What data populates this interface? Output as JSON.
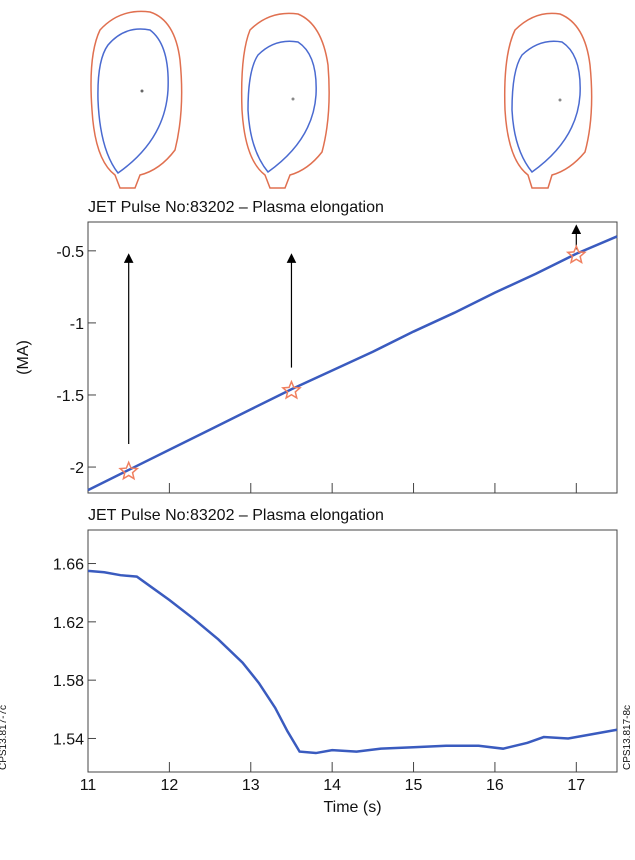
{
  "chart_data": [
    {
      "type": "line",
      "title": "JET Pulse No:83202 – Plasma elongation",
      "ylabel": "(MA)",
      "xlim": [
        11,
        17.5
      ],
      "ylim": [
        -2.18,
        -0.3
      ],
      "xticks": [
        11,
        12,
        13,
        14,
        15,
        16,
        17
      ],
      "show_xtick_labels": false,
      "yticks": [
        -2.0,
        -1.5,
        -1.0,
        -0.5
      ],
      "series": [
        {
          "color": "#3a5bbf",
          "x": [
            11,
            11.5,
            12,
            12.5,
            13,
            13.5,
            14,
            14.5,
            15,
            15.5,
            16,
            16.5,
            17,
            17.5
          ],
          "values": [
            -2.16,
            -2.02,
            -1.88,
            -1.74,
            -1.6,
            -1.46,
            -1.33,
            -1.2,
            -1.06,
            -0.93,
            -0.79,
            -0.66,
            -0.52,
            -0.4
          ]
        }
      ],
      "markers": {
        "color": "#f08060",
        "x": [
          11.5,
          13.5,
          17
        ],
        "values": [
          -2.03,
          -1.47,
          -0.53
        ]
      },
      "arrows": [
        {
          "x": 11.5,
          "y": [
            -1.84,
            -0.55
          ]
        },
        {
          "x": 13.5,
          "y": [
            -1.31,
            -0.55
          ]
        },
        {
          "x": 17,
          "y": [
            -0.49,
            -0.35
          ]
        }
      ]
    },
    {
      "type": "line",
      "title": "JET Pulse No:83202 – Plasma elongation",
      "xlabel": "Time (s)",
      "xlim": [
        11,
        17.5
      ],
      "ylim": [
        1.517,
        1.683
      ],
      "xticks": [
        11,
        12,
        13,
        14,
        15,
        16,
        17
      ],
      "show_xtick_labels": true,
      "yticks": [
        1.54,
        1.58,
        1.62,
        1.66
      ],
      "series": [
        {
          "color": "#3a5bbf",
          "x": [
            11,
            11.2,
            11.4,
            11.6,
            11.8,
            12,
            12.3,
            12.6,
            12.9,
            13.1,
            13.3,
            13.45,
            13.6,
            13.8,
            14,
            14.3,
            14.6,
            15,
            15.4,
            15.8,
            16.1,
            16.4,
            16.6,
            16.9,
            17.2,
            17.5
          ],
          "values": [
            1.655,
            1.654,
            1.652,
            1.651,
            1.643,
            1.635,
            1.622,
            1.608,
            1.592,
            1.578,
            1.561,
            1.545,
            1.531,
            1.53,
            1.532,
            1.531,
            1.533,
            1.534,
            1.535,
            1.535,
            1.533,
            1.537,
            1.541,
            1.54,
            1.543,
            1.546
          ]
        }
      ]
    }
  ],
  "side_notes": [
    "CPS13.817-7c",
    "CPS13.817-8c"
  ]
}
